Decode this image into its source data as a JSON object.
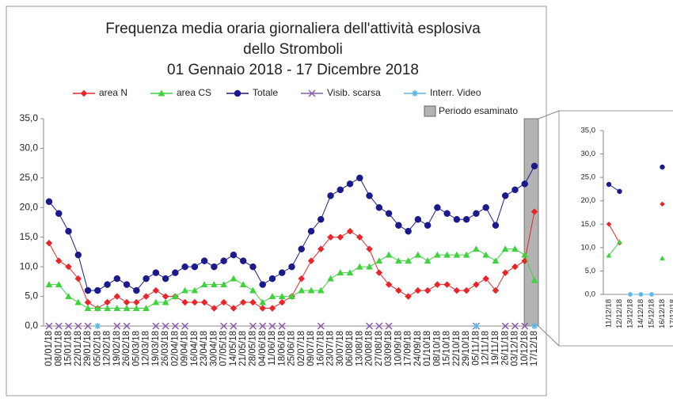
{
  "chart_data": [
    {
      "type": "line",
      "title": [
        "Frequenza media oraria giornaliera dell'attività esplosiva",
        "dello Stromboli",
        "01 Gennaio 2018 - 17 Dicembre 2018"
      ],
      "categories": [
        "01/01/18",
        "08/01/18",
        "15/01/18",
        "22/01/18",
        "29/01/18",
        "05/02/18",
        "12/02/18",
        "19/02/18",
        "26/02/18",
        "05/03/18",
        "12/03/18",
        "19/03/18",
        "26/03/18",
        "02/04/18",
        "09/04/18",
        "16/04/18",
        "23/04/18",
        "30/04/18",
        "07/05/18",
        "14/05/18",
        "21/05/18",
        "28/05/18",
        "04/06/18",
        "11/06/18",
        "18/06/18",
        "25/06/18",
        "02/07/18",
        "09/07/18",
        "16/07/18",
        "23/07/18",
        "30/07/18",
        "06/08/18",
        "13/08/18",
        "20/08/18",
        "27/08/18",
        "03/09/18",
        "10/09/18",
        "17/09/18",
        "24/09/18",
        "01/10/18",
        "08/10/18",
        "15/10/18",
        "22/10/18",
        "29/10/18",
        "05/11/18",
        "12/11/18",
        "19/11/18",
        "26/11/18",
        "03/12/18",
        "10/12/18",
        "17/12/18"
      ],
      "series": [
        {
          "name": "area N",
          "color": "#e8262a",
          "marker": "diamond",
          "line": true,
          "values": [
            14,
            11,
            10,
            8,
            4,
            3,
            4,
            5,
            4,
            4,
            5,
            6,
            5,
            5,
            4,
            4,
            4,
            3,
            4,
            3,
            4,
            4,
            3,
            3,
            4,
            5,
            8,
            11,
            13,
            15,
            15,
            16,
            15,
            13,
            9,
            7,
            6,
            5,
            6,
            6,
            7,
            7,
            6,
            6,
            7,
            8,
            6,
            9,
            10,
            11,
            19.3
          ]
        },
        {
          "name": "area CS",
          "color": "#3ed33e",
          "marker": "triangle",
          "line": true,
          "values": [
            7,
            7,
            5,
            4,
            3,
            3,
            3,
            3,
            3,
            3,
            3,
            4,
            4,
            5,
            6,
            6,
            7,
            7,
            7,
            8,
            7,
            6,
            4,
            5,
            5,
            5,
            6,
            6,
            6,
            8,
            9,
            9,
            10,
            10,
            11,
            12,
            11,
            11,
            12,
            11,
            12,
            12,
            12,
            12,
            13,
            12,
            11,
            13,
            13,
            12,
            7.7
          ]
        },
        {
          "name": "Totale",
          "color": "#1a1a8c",
          "marker": "circle",
          "line": true,
          "values": [
            21,
            19,
            16,
            12,
            6,
            6,
            7,
            8,
            7,
            6,
            8,
            9,
            8,
            9,
            10,
            10,
            11,
            10,
            11,
            12,
            11,
            10,
            7,
            8,
            9,
            10,
            13,
            16,
            18,
            22,
            23,
            24,
            25,
            22,
            20,
            19,
            17,
            16,
            18,
            17,
            20,
            19,
            18,
            18,
            19,
            20,
            17,
            22,
            23,
            24,
            27
          ]
        },
        {
          "name": "Visib. scarsa",
          "color": "#8e5ab0",
          "marker": "x",
          "line": false,
          "values": [
            0,
            0,
            0,
            0,
            0,
            null,
            null,
            0,
            0,
            null,
            null,
            0,
            0,
            0,
            0,
            null,
            null,
            null,
            0,
            0,
            null,
            0,
            0,
            0,
            0,
            null,
            null,
            null,
            0,
            null,
            null,
            null,
            null,
            0,
            0,
            0,
            null,
            null,
            null,
            null,
            null,
            null,
            null,
            null,
            0,
            null,
            null,
            0,
            0,
            0,
            null
          ]
        },
        {
          "name": "Interr. Video",
          "color": "#5cb8e6",
          "marker": "star",
          "line": false,
          "values": [
            null,
            null,
            null,
            null,
            null,
            0,
            null,
            null,
            null,
            null,
            null,
            null,
            null,
            null,
            null,
            null,
            null,
            null,
            null,
            null,
            null,
            null,
            null,
            null,
            null,
            null,
            null,
            null,
            null,
            null,
            null,
            null,
            null,
            null,
            null,
            null,
            null,
            null,
            null,
            null,
            null,
            null,
            null,
            null,
            0,
            null,
            null,
            null,
            null,
            null,
            0
          ]
        }
      ],
      "highlight": {
        "name": "Periodo esaminato",
        "color": "#b3b3b3"
      },
      "ylim": [
        0,
        35
      ],
      "yticks": [
        {
          "value": 0,
          "label": "0,0"
        },
        {
          "value": 5,
          "label": "5,0"
        },
        {
          "value": 10,
          "label": "10,0"
        },
        {
          "value": 15,
          "label": "15,0"
        },
        {
          "value": 20,
          "label": "20,0"
        },
        {
          "value": 25,
          "label": "25,0"
        },
        {
          "value": 30,
          "label": "30,0"
        },
        {
          "value": 35,
          "label": "35,0"
        }
      ],
      "grid": false
    },
    {
      "type": "line",
      "categories": [
        "11/12/18",
        "12/12/18",
        "13/12/18",
        "14/12/18",
        "15/12/18",
        "16/12/18",
        "17/12/18"
      ],
      "series": [
        {
          "color": "#e8262a",
          "marker": "diamond",
          "line": true,
          "values": [
            15,
            11,
            null,
            null,
            null,
            19.3,
            null
          ]
        },
        {
          "color": "#3ed33e",
          "marker": "triangle",
          "line": true,
          "values": [
            8.3,
            11.2,
            null,
            null,
            null,
            7.7,
            null
          ]
        },
        {
          "color": "#1a1a8c",
          "marker": "circle",
          "line": true,
          "values": [
            23.5,
            22,
            null,
            null,
            null,
            27.2,
            null
          ]
        },
        {
          "color": "#5cb8e6",
          "marker": "star",
          "line": true,
          "values": [
            null,
            null,
            0,
            0,
            0,
            null,
            null
          ]
        }
      ],
      "ylim": [
        0,
        35
      ],
      "yticks": [
        {
          "value": 0,
          "label": "0,0"
        },
        {
          "value": 5,
          "label": "5,0"
        },
        {
          "value": 10,
          "label": "10,0"
        },
        {
          "value": 15,
          "label": "15,0"
        },
        {
          "value": 20,
          "label": "20,0"
        },
        {
          "value": 25,
          "label": "25,0"
        },
        {
          "value": 30,
          "label": "30,0"
        },
        {
          "value": 35,
          "label": "35,0"
        }
      ],
      "grid": false
    }
  ]
}
